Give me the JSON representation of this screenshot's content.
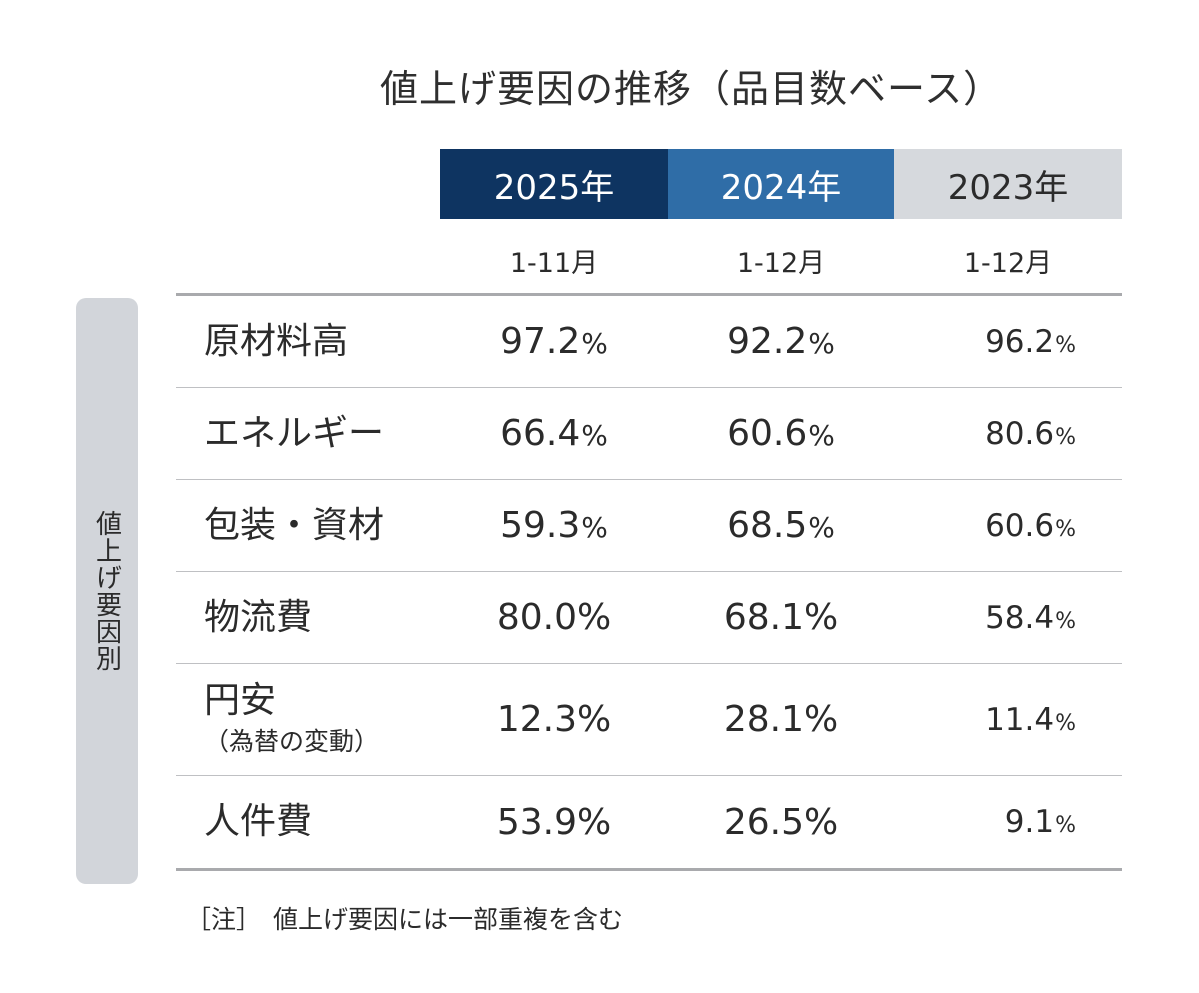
{
  "chart_data": {
    "type": "table",
    "title": "値上げ要因の推移（品目数ベース）",
    "row_group_label": "値上げ要因別",
    "columns": [
      {
        "year": "2025年",
        "period": "1-11月",
        "header_color": "#0e3461"
      },
      {
        "year": "2024年",
        "period": "1-12月",
        "header_color": "#2f6da7"
      },
      {
        "year": "2023年",
        "period": "1-12月",
        "header_color": "#d6d9dd"
      }
    ],
    "rows": [
      {
        "label": "原材料高",
        "sublabel": "",
        "values": [
          "97.2",
          "92.2",
          "96.2"
        ]
      },
      {
        "label": "エネルギー",
        "sublabel": "",
        "values": [
          "66.4",
          "60.6",
          "80.6"
        ]
      },
      {
        "label": "包装・資材",
        "sublabel": "",
        "values": [
          "59.3",
          "68.5",
          "60.6"
        ]
      },
      {
        "label": "物流費",
        "sublabel": "",
        "values": [
          "80.0",
          "68.1",
          "58.4"
        ]
      },
      {
        "label": "円安",
        "sublabel": "（為替の変動）",
        "values": [
          "12.3",
          "28.1",
          "11.4"
        ]
      },
      {
        "label": "人件費",
        "sublabel": "",
        "values": [
          "53.9",
          "26.5",
          "9.1"
        ]
      }
    ],
    "unit": "%",
    "note_prefix": "［注］",
    "note_text": "値上げ要因には一部重複を含む"
  }
}
